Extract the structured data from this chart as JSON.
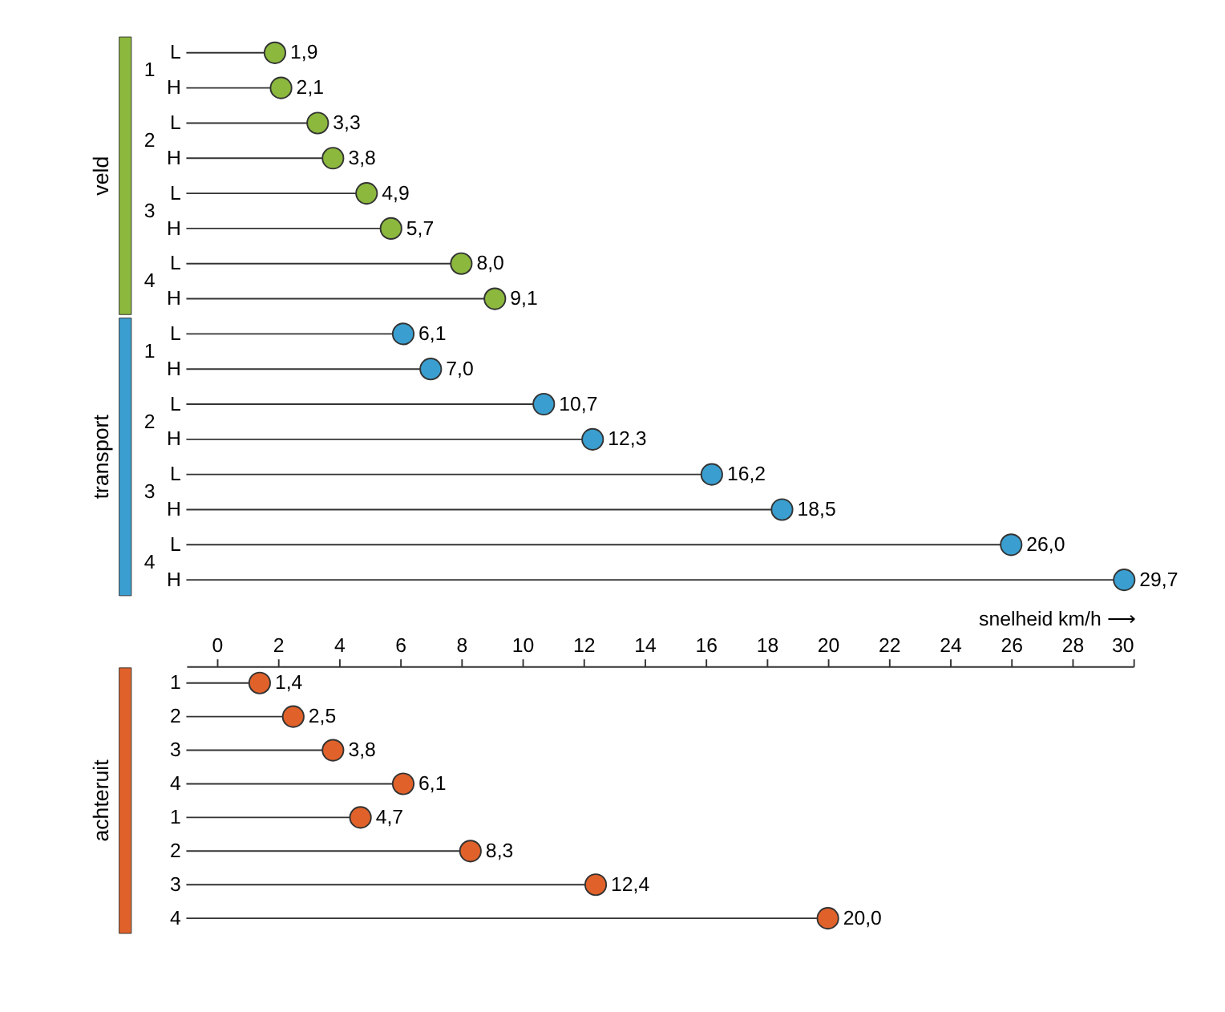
{
  "chart_data": [
    {
      "type": "lollipop",
      "orientation": "horizontal",
      "marker": "circle",
      "grid": false,
      "tick_labels": "y",
      "categories": [
        "L",
        "H",
        "L",
        "H",
        "L",
        "H",
        "L",
        "H",
        "L",
        "H",
        "L",
        "H",
        "L",
        "H",
        "L",
        "H"
      ],
      "values": [
        1.9,
        2.1,
        3.3,
        3.8,
        4.9,
        5.7,
        8.0,
        9.1,
        6.1,
        7.0,
        10.7,
        12.3,
        16.2,
        18.5,
        26.0,
        29.7
      ],
      "value_labels": [
        "1,9",
        "2,1",
        "3,3",
        "3,8",
        "4,9",
        "5,7",
        "8,0",
        "9,1",
        "6,1",
        "7,0",
        "10,7",
        "12,3",
        "16,2",
        "18,5",
        "26,0",
        "29,7"
      ],
      "colors": [
        "#8cb83e",
        "#8cb83e",
        "#8cb83e",
        "#8cb83e",
        "#8cb83e",
        "#8cb83e",
        "#8cb83e",
        "#8cb83e",
        "#3a9fd0",
        "#3a9fd0",
        "#3a9fd0",
        "#3a9fd0",
        "#3a9fd0",
        "#3a9fd0",
        "#3a9fd0",
        "#3a9fd0"
      ],
      "xlim": [
        -1,
        30
      ],
      "xticks": [
        0,
        2,
        4,
        6,
        8,
        10,
        12,
        14,
        16,
        18,
        20,
        22,
        24,
        26,
        28,
        30
      ],
      "annotations": [
        "veld",
        "transport",
        "1",
        "2",
        "3",
        "4",
        "1",
        "2",
        "3",
        "4"
      ]
    },
    {
      "type": "lollipop",
      "orientation": "horizontal",
      "marker": "circle",
      "grid": false,
      "categories": [
        "1",
        "2",
        "3",
        "4",
        "1",
        "2",
        "3",
        "4"
      ],
      "values": [
        1.4,
        2.5,
        3.8,
        6.1,
        4.7,
        8.3,
        12.4,
        20.0
      ],
      "value_labels": [
        "1,4",
        "2,5",
        "3,8",
        "6,1",
        "4,7",
        "8,3",
        "12,4",
        "20,0"
      ],
      "colors": [
        "#e0622a",
        "#e0622a",
        "#e0622a",
        "#e0622a",
        "#e0622a",
        "#e0622a",
        "#e0622a",
        "#e0622a"
      ],
      "xlim": [
        -1,
        30
      ],
      "xticks": [
        0,
        2,
        4,
        6,
        8,
        10,
        12,
        14,
        16,
        18,
        20,
        22,
        24,
        26,
        28,
        30
      ],
      "xlabel": "snelheid km/h ⟶",
      "annotations": [
        "achteruit"
      ]
    }
  ]
}
